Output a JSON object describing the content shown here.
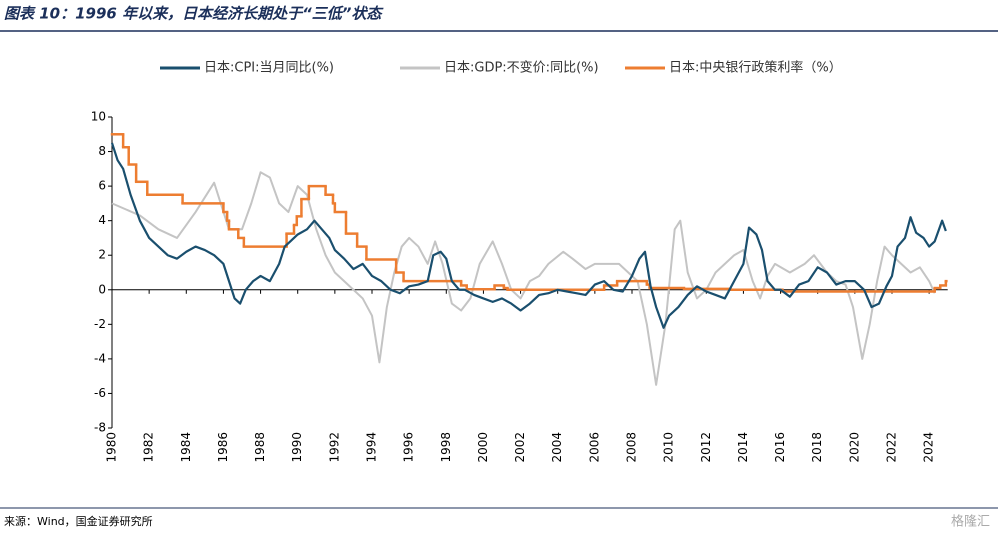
{
  "chart_data": {
    "type": "line",
    "title": "图表 10：1996 年以来，日本经济长期处于“三低”状态",
    "source": "来源：Wind，国金证券研究所",
    "watermark": "格隆汇",
    "xlim": [
      1980,
      2025
    ],
    "xticks": [
      1980,
      1982,
      1984,
      1986,
      1988,
      1990,
      1992,
      1994,
      1996,
      1998,
      2000,
      2002,
      2004,
      2006,
      2008,
      2010,
      2012,
      2014,
      2016,
      2018,
      2020,
      2022,
      2024
    ],
    "ylim": [
      -8,
      10
    ],
    "yticks": [
      -8,
      -6,
      -4,
      -2,
      0,
      2,
      4,
      6,
      8,
      10
    ],
    "series": [
      {
        "name": "日本:CPI:当月同比(%)",
        "color": "#1a4f6e",
        "x": [
          1980,
          1980.3,
          1980.6,
          1981,
          1981.5,
          1982,
          1982.5,
          1983,
          1983.5,
          1984,
          1984.5,
          1985,
          1985.5,
          1986,
          1986.3,
          1986.6,
          1986.9,
          1987.2,
          1987.6,
          1988,
          1988.5,
          1989,
          1989.3,
          1989.6,
          1990,
          1990.5,
          1990.9,
          1991.3,
          1991.7,
          1992,
          1992.5,
          1993,
          1993.5,
          1994,
          1994.5,
          1995,
          1995.5,
          1996,
          1996.5,
          1997,
          1997.3,
          1997.7,
          1998,
          1998.3,
          1998.7,
          1999,
          1999.5,
          2000,
          2000.5,
          2001,
          2001.5,
          2002,
          2002.5,
          2003,
          2003.5,
          2004,
          2004.5,
          2005,
          2005.5,
          2006,
          2006.5,
          2007,
          2007.5,
          2008,
          2008.4,
          2008.7,
          2009,
          2009.3,
          2009.7,
          2010,
          2010.5,
          2011,
          2011.5,
          2012,
          2012.5,
          2013,
          2013.5,
          2014,
          2014.3,
          2014.7,
          2015,
          2015.3,
          2015.7,
          2016,
          2016.5,
          2017,
          2017.5,
          2018,
          2018.5,
          2019,
          2019.5,
          2020,
          2020.5,
          2020.9,
          2021.3,
          2021.7,
          2022,
          2022.3,
          2022.7,
          2023,
          2023.3,
          2023.7,
          2024,
          2024.3,
          2024.7,
          2024.9
        ],
        "values": [
          8.5,
          7.5,
          7.0,
          5.5,
          4.0,
          3.0,
          2.5,
          2.0,
          1.8,
          2.2,
          2.5,
          2.3,
          2.0,
          1.5,
          0.5,
          -0.5,
          -0.8,
          0,
          0.5,
          0.8,
          0.5,
          1.5,
          2.5,
          2.8,
          3.2,
          3.5,
          4.0,
          3.5,
          3.0,
          2.3,
          1.8,
          1.2,
          1.5,
          0.8,
          0.5,
          0,
          -0.2,
          0.2,
          0.3,
          0.5,
          2.0,
          2.2,
          1.8,
          0.5,
          0,
          0,
          -0.3,
          -0.5,
          -0.7,
          -0.5,
          -0.8,
          -1.2,
          -0.8,
          -0.3,
          -0.2,
          0,
          -0.1,
          -0.2,
          -0.3,
          0.3,
          0.5,
          0,
          -0.1,
          0.8,
          1.8,
          2.2,
          0.2,
          -1.0,
          -2.2,
          -1.5,
          -1.0,
          -0.3,
          0.2,
          -0.1,
          -0.3,
          -0.5,
          0.5,
          1.5,
          3.6,
          3.2,
          2.3,
          0.5,
          0,
          0,
          -0.4,
          0.3,
          0.5,
          1.3,
          1.0,
          0.3,
          0.5,
          0.5,
          0,
          -1.0,
          -0.8,
          0.2,
          0.8,
          2.5,
          3.0,
          4.2,
          3.3,
          3.0,
          2.5,
          2.8,
          4.0,
          3.4
        ]
      },
      {
        "name": "日本:GDP:不变价:同比(%)",
        "color": "#c4c4c4",
        "x": [
          1980,
          1981.5,
          1982.5,
          1983.5,
          1984.5,
          1985.5,
          1986.3,
          1987,
          1987.5,
          1988,
          1988.5,
          1989,
          1989.5,
          1990,
          1990.5,
          1991,
          1991.5,
          1992,
          1992.5,
          1993,
          1993.5,
          1994,
          1994.4,
          1994.8,
          1995.2,
          1995.6,
          1996,
          1996.5,
          1997,
          1997.4,
          1997.8,
          1998.3,
          1998.8,
          1999.3,
          1999.8,
          2000.5,
          2001,
          2001.5,
          2002,
          2002.5,
          2003,
          2003.5,
          2004.3,
          2004.8,
          2005.5,
          2006,
          2006.5,
          2007.3,
          2007.8,
          2008.3,
          2008.8,
          2009.3,
          2009.8,
          2010.3,
          2010.6,
          2011,
          2011.5,
          2012,
          2012.5,
          2013,
          2013.5,
          2014,
          2014.5,
          2014.9,
          2015.3,
          2015.7,
          2016.5,
          2017.3,
          2017.8,
          2018.5,
          2019,
          2019.5,
          2019.9,
          2020.4,
          2020.8,
          2021.2,
          2021.6,
          2022,
          2022.5,
          2023,
          2023.5,
          2024,
          2024.3
        ],
        "values": [
          5,
          4.3,
          3.5,
          3.0,
          4.5,
          6.2,
          3.5,
          3.5,
          5.0,
          6.8,
          6.5,
          5.0,
          4.5,
          6.0,
          5.5,
          3.5,
          2.0,
          1.0,
          0.5,
          0,
          -0.5,
          -1.5,
          -4.2,
          -1.0,
          1.0,
          2.5,
          3.0,
          2.5,
          1.5,
          2.8,
          1.5,
          -0.8,
          -1.2,
          -0.5,
          1.5,
          2.8,
          1.5,
          0,
          -0.5,
          0.5,
          0.8,
          1.5,
          2.2,
          1.8,
          1.2,
          1.5,
          1.5,
          1.5,
          1.0,
          0.5,
          -2.0,
          -5.5,
          -2.0,
          3.5,
          4.0,
          1.0,
          -0.5,
          0,
          1.0,
          1.5,
          2.0,
          2.3,
          0.5,
          -0.5,
          0.8,
          1.5,
          1.0,
          1.5,
          2.0,
          1.0,
          0.5,
          0.3,
          -1.0,
          -4.0,
          -2.0,
          0.5,
          2.5,
          2.0,
          1.5,
          1.0,
          1.3,
          0.5,
          -0.2
        ]
      },
      {
        "name": "日本:中央银行政策利率（%）",
        "color": "#ed7d31",
        "step": "post",
        "x": [
          1980,
          1980.6,
          1980.9,
          1981.3,
          1981.9,
          1983.8,
          1986.0,
          1986.2,
          1986.3,
          1986.8,
          1987.1,
          1989.4,
          1989.8,
          1989.95,
          1990.2,
          1990.6,
          1991.5,
          1991.9,
          1992.0,
          1992.6,
          1993.2,
          1993.7,
          1995.3,
          1995.7,
          1998.8,
          1999.1,
          2000.6,
          2001.1,
          2001.3,
          2006.5,
          2007.2,
          2008.8,
          2008.95,
          2010.8,
          2013.3,
          2016.1,
          2024.3,
          2024.6,
          2024.9
        ],
        "values": [
          9,
          8.25,
          7.25,
          6.25,
          5.5,
          5,
          4.5,
          4.0,
          3.5,
          3.0,
          2.5,
          3.25,
          3.75,
          4.25,
          5.25,
          6,
          5.5,
          5.0,
          4.5,
          3.25,
          2.5,
          1.75,
          1.0,
          0.5,
          0.25,
          0.03,
          0.25,
          0.1,
          0,
          0.25,
          0.5,
          0.3,
          0.1,
          0.05,
          0,
          -0.1,
          0.1,
          0.25,
          0.5
        ]
      }
    ]
  }
}
